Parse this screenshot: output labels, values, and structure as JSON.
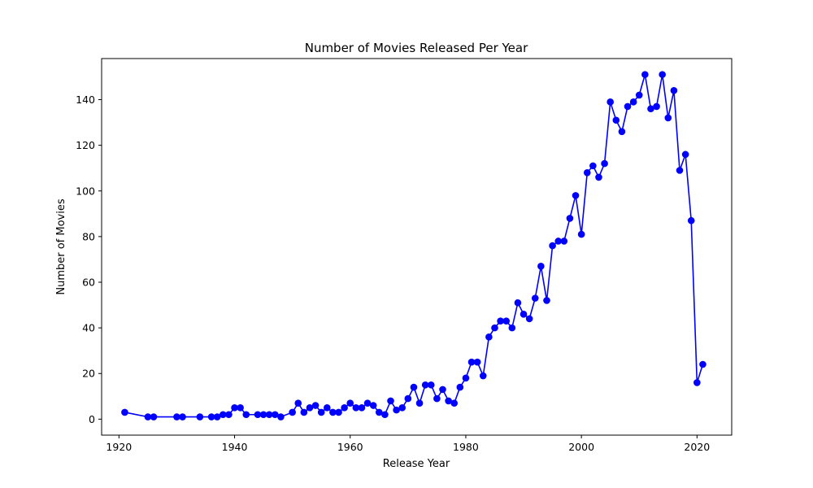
{
  "chart_data": {
    "type": "line",
    "title": "Number of Movies Released Per Year",
    "xlabel": "Release Year",
    "ylabel": "Number of Movies",
    "xlim": [
      1917,
      2026
    ],
    "ylim": [
      -7,
      158
    ],
    "x_ticks": [
      1920,
      1940,
      1960,
      1980,
      2000,
      2020
    ],
    "y_ticks": [
      0,
      20,
      40,
      60,
      80,
      100,
      120,
      140
    ],
    "grid": false,
    "legend": "none",
    "marker": "circle",
    "series": [
      {
        "color": "#0000ff",
        "x": [
          1921,
          1925,
          1926,
          1930,
          1931,
          1934,
          1936,
          1937,
          1938,
          1939,
          1940,
          1941,
          1942,
          1944,
          1945,
          1946,
          1947,
          1948,
          1950,
          1951,
          1952,
          1953,
          1954,
          1955,
          1956,
          1957,
          1958,
          1959,
          1960,
          1961,
          1962,
          1963,
          1964,
          1965,
          1966,
          1967,
          1968,
          1969,
          1970,
          1971,
          1972,
          1973,
          1974,
          1975,
          1976,
          1977,
          1978,
          1979,
          1980,
          1981,
          1982,
          1983,
          1984,
          1985,
          1986,
          1987,
          1988,
          1989,
          1990,
          1991,
          1992,
          1993,
          1994,
          1995,
          1996,
          1997,
          1998,
          1999,
          2000,
          2001,
          2002,
          2003,
          2004,
          2005,
          2006,
          2007,
          2008,
          2009,
          2010,
          2011,
          2012,
          2013,
          2014,
          2015,
          2016,
          2017,
          2018,
          2019,
          2020,
          2021
        ],
        "y": [
          3,
          1,
          1,
          1,
          1,
          1,
          1,
          1,
          2,
          2,
          5,
          5,
          2,
          2,
          2,
          2,
          2,
          1,
          3,
          7,
          3,
          5,
          6,
          3,
          5,
          3,
          3,
          5,
          7,
          5,
          5,
          7,
          6,
          3,
          2,
          8,
          4,
          5,
          9,
          14,
          7,
          15,
          15,
          9,
          13,
          8,
          7,
          14,
          18,
          25,
          25,
          19,
          36,
          40,
          43,
          43,
          40,
          51,
          46,
          44,
          53,
          67,
          52,
          76,
          78,
          78,
          88,
          98,
          81,
          108,
          111,
          106,
          112,
          139,
          131,
          126,
          137,
          139,
          142,
          151,
          136,
          137,
          151,
          132,
          144,
          109,
          116,
          87,
          16,
          24
        ]
      }
    ]
  }
}
